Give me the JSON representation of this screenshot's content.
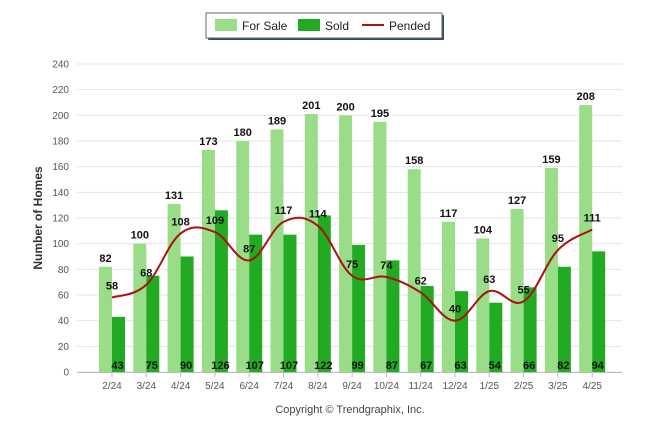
{
  "chart_data": {
    "type": "bar",
    "ylabel": "Number of Homes",
    "ylim": [
      0,
      240
    ],
    "yticks": [
      0,
      20,
      40,
      60,
      80,
      100,
      120,
      140,
      160,
      180,
      200,
      220,
      240
    ],
    "grid": true,
    "legend_position": "top-center",
    "categories": [
      "2/24",
      "3/24",
      "4/24",
      "5/24",
      "6/24",
      "7/24",
      "8/24",
      "9/24",
      "10/24",
      "11/24",
      "12/24",
      "1/25",
      "2/25",
      "3/25",
      "4/25"
    ],
    "series": [
      {
        "name": "For Sale",
        "kind": "bar",
        "color": "#99dd88",
        "values": [
          82,
          100,
          131,
          173,
          180,
          189,
          201,
          200,
          195,
          158,
          117,
          104,
          127,
          159,
          208
        ]
      },
      {
        "name": "Sold",
        "kind": "bar",
        "color": "#22aa22",
        "values": [
          43,
          75,
          90,
          126,
          107,
          107,
          122,
          99,
          87,
          67,
          63,
          54,
          66,
          82,
          94
        ]
      },
      {
        "name": "Pended",
        "kind": "line",
        "color": "#aa1111",
        "values": [
          58,
          68,
          108,
          109,
          87,
          117,
          114,
          75,
          74,
          62,
          40,
          63,
          55,
          95,
          111
        ]
      }
    ]
  },
  "footer": {
    "copyright": "Copyright © Trendgraphix, Inc."
  }
}
